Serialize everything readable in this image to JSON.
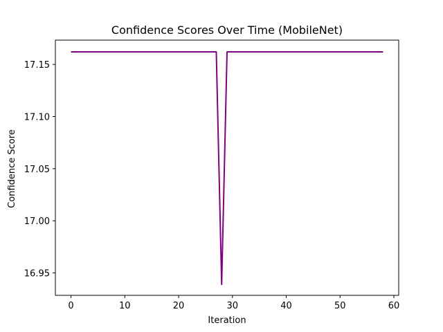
{
  "chart_data": {
    "type": "line",
    "title": "Confidence Scores Over Time (MobileNet)",
    "xlabel": "Iteration",
    "ylabel": "Confidence Score",
    "xlim": [
      -2.9,
      60.9
    ],
    "ylim": [
      16.9285,
      17.1733
    ],
    "xticks": [
      0,
      10,
      20,
      30,
      40,
      50,
      60
    ],
    "yticks": [
      16.95,
      17.0,
      17.05,
      17.1,
      17.15
    ],
    "ytick_labels": [
      "16.95",
      "17.00",
      "17.05",
      "17.10",
      "17.15"
    ],
    "grid": false,
    "series": [
      {
        "color": "#800080",
        "x": [
          0,
          1,
          2,
          3,
          4,
          5,
          6,
          7,
          8,
          9,
          10,
          11,
          12,
          13,
          14,
          15,
          16,
          17,
          18,
          19,
          20,
          21,
          22,
          23,
          24,
          25,
          26,
          27,
          28,
          29,
          30,
          31,
          32,
          33,
          34,
          35,
          36,
          37,
          38,
          39,
          40,
          41,
          42,
          43,
          44,
          45,
          46,
          47,
          48,
          49,
          50,
          51,
          52,
          53,
          54,
          55,
          56,
          57,
          58
        ],
        "y": [
          17.162,
          17.162,
          17.162,
          17.162,
          17.162,
          17.162,
          17.162,
          17.162,
          17.162,
          17.162,
          17.162,
          17.162,
          17.162,
          17.162,
          17.162,
          17.162,
          17.162,
          17.162,
          17.162,
          17.162,
          17.162,
          17.162,
          17.162,
          17.162,
          17.162,
          17.162,
          17.162,
          17.162,
          16.939,
          17.162,
          17.162,
          17.162,
          17.162,
          17.162,
          17.162,
          17.162,
          17.162,
          17.162,
          17.162,
          17.162,
          17.162,
          17.162,
          17.162,
          17.162,
          17.162,
          17.162,
          17.162,
          17.162,
          17.162,
          17.162,
          17.162,
          17.162,
          17.162,
          17.162,
          17.162,
          17.162,
          17.162,
          17.162,
          17.162
        ]
      }
    ]
  }
}
